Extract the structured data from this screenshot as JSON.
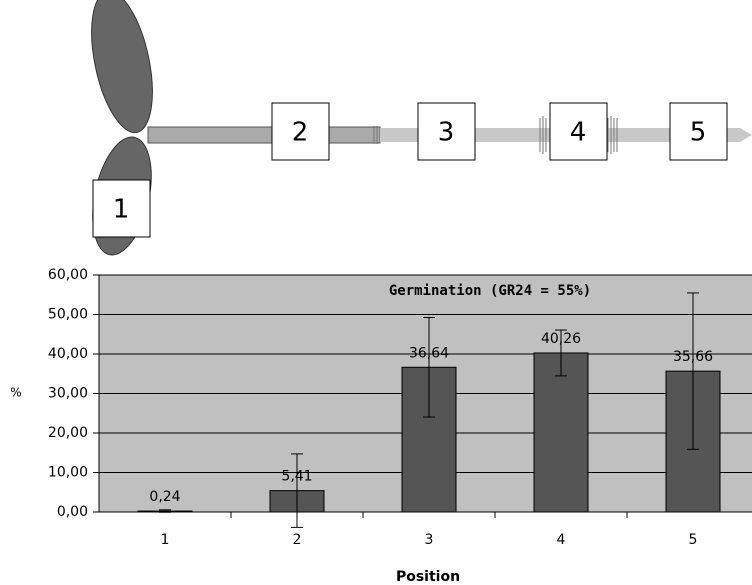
{
  "diagram": {
    "labels": [
      "1",
      "2",
      "3",
      "4",
      "5"
    ]
  },
  "chart_data": {
    "type": "bar",
    "title": "Germination (GR24 = 55%)",
    "x_label": "Position",
    "y_label": "%",
    "categories": [
      "1",
      "2",
      "3",
      "4",
      "5"
    ],
    "values": [
      0.24,
      5.41,
      36.64,
      40.26,
      35.66
    ],
    "value_labels": [
      "0,24",
      "5,41",
      "36,64",
      "40,26",
      "35,66"
    ],
    "errors": [
      0.3,
      9.3,
      12.6,
      5.8,
      19.8
    ],
    "color": "#555555",
    "ylim": [
      0,
      60
    ],
    "yticks": [
      {
        "value": 0,
        "label": "0,00"
      },
      {
        "value": 10,
        "label": "10,00"
      },
      {
        "value": 20,
        "label": "20,00"
      },
      {
        "value": 30,
        "label": "30,00"
      },
      {
        "value": 40,
        "label": "40,00"
      },
      {
        "value": 50,
        "label": "50,00"
      },
      {
        "value": 60,
        "label": "60,00"
      }
    ],
    "grid": true
  }
}
